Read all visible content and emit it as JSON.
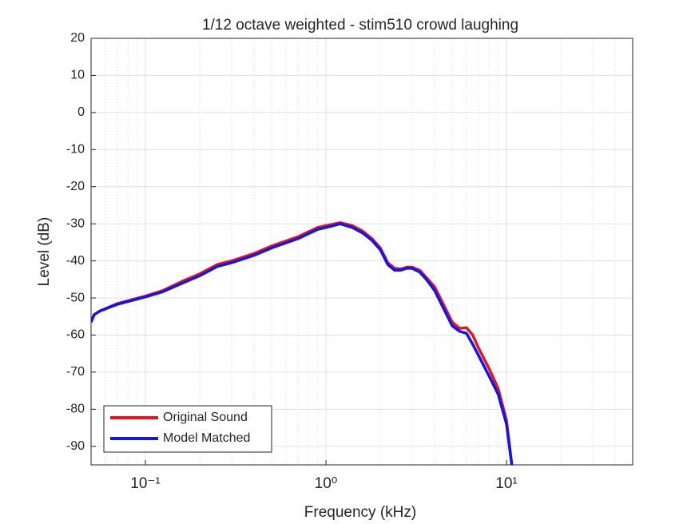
{
  "chart_data": {
    "type": "line",
    "title": "1/12 octave weighted - stim510 crowd laughing",
    "xlabel": "Frequency (kHz)",
    "ylabel": "Level (dB)",
    "xscale": "log",
    "x": [
      0.05,
      0.052,
      0.056,
      0.07,
      0.1,
      0.125,
      0.16,
      0.2,
      0.25,
      0.3,
      0.4,
      0.5,
      0.7,
      0.9,
      1.0,
      1.2,
      1.4,
      1.6,
      1.8,
      2.0,
      2.2,
      2.4,
      2.6,
      2.8,
      3.0,
      3.3,
      3.6,
      4.0,
      4.5,
      5.0,
      5.5,
      6.0,
      6.5,
      7.0,
      8.0,
      9.0,
      10.0,
      10.7
    ],
    "series": [
      {
        "name": "Original Sound",
        "color": "#e8141c",
        "values": [
          -56.5,
          -54.5,
          -53.5,
          -51.5,
          -49.5,
          -48,
          -45.5,
          -43.5,
          -41,
          -40,
          -38,
          -36,
          -33.5,
          -31,
          -30.5,
          -29.7,
          -30.5,
          -32,
          -34,
          -36.5,
          -40.5,
          -42,
          -42.2,
          -41.7,
          -41.7,
          -42.5,
          -44.5,
          -47,
          -52,
          -56.5,
          -58.2,
          -58,
          -60,
          -63.5,
          -69,
          -74.5,
          -83,
          -95
        ]
      },
      {
        "name": "Model Matched",
        "color": "#1414e6",
        "values": [
          -56.5,
          -54.5,
          -53.5,
          -51.7,
          -49.7,
          -48.3,
          -46,
          -44,
          -41.5,
          -40.5,
          -38.5,
          -36.5,
          -34,
          -31.5,
          -31,
          -30,
          -31,
          -32.5,
          -34.5,
          -37,
          -41,
          -42.5,
          -42.5,
          -42,
          -42,
          -43,
          -45,
          -48,
          -53,
          -57.5,
          -59,
          -59.5,
          -62.5,
          -65.5,
          -71,
          -76,
          -84,
          -95
        ]
      }
    ],
    "xlim": [
      0.05,
      50
    ],
    "ylim": [
      -95,
      20
    ],
    "xticks": [
      {
        "value": 0.1,
        "label": "10⁻¹"
      },
      {
        "value": 1,
        "label": "10⁰"
      },
      {
        "value": 10,
        "label": "10¹"
      }
    ],
    "yticks": [
      20,
      10,
      0,
      -10,
      -20,
      -30,
      -40,
      -50,
      -60,
      -70,
      -80,
      -90
    ],
    "grid": true,
    "xminorgrid": true,
    "legend": "lower left"
  }
}
